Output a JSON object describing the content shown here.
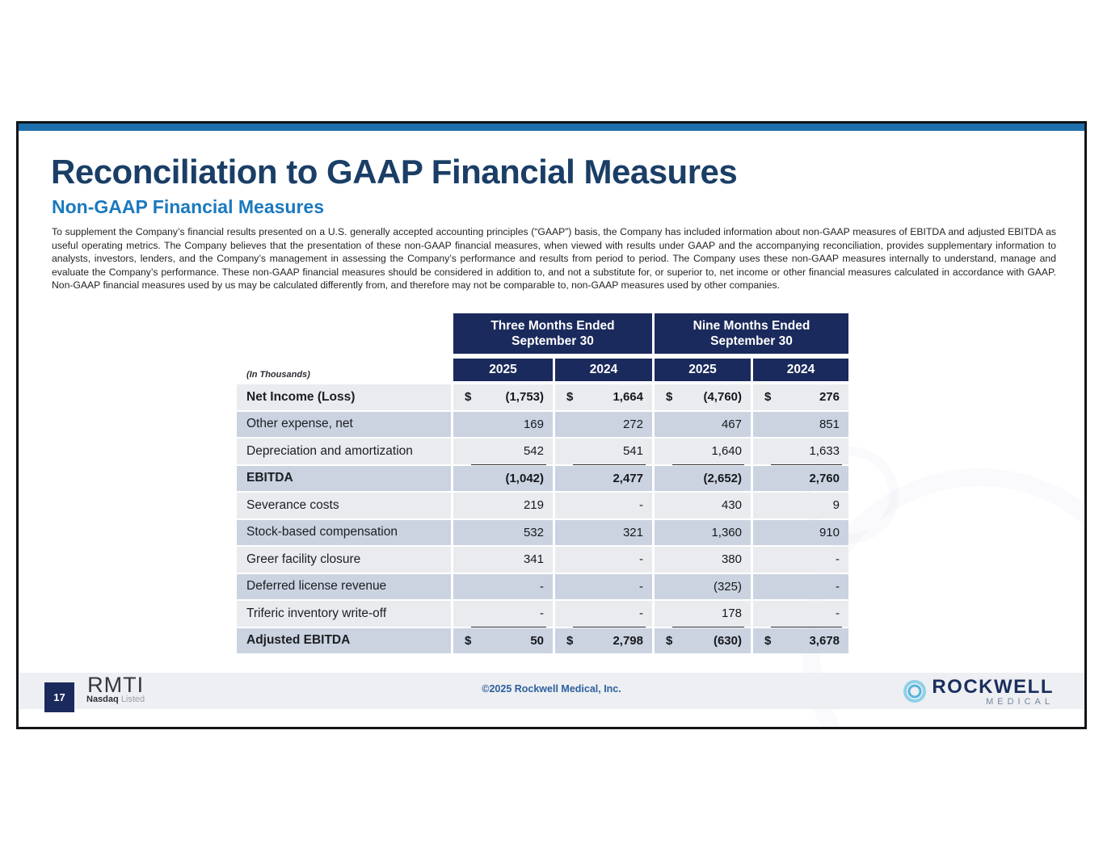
{
  "slide": {
    "title": "Reconciliation to GAAP Financial Measures",
    "subtitle": "Non-GAAP Financial Measures",
    "body_paragraph": "To supplement the Company’s financial results presented on a U.S. generally accepted accounting principles (“GAAP”) basis, the Company has included information about non-GAAP measures of EBITDA and adjusted EBITDA as useful operating metrics. The Company believes that the presentation of these non-GAAP financial measures, when viewed with results under GAAP and the accompanying reconciliation, provides supplementary information to analysts, investors, lenders, and the Company’s management in assessing the Company’s performance and results from period to period. The Company uses these non-GAAP measures internally to understand, manage and evaluate the Company’s performance. These non-GAAP financial measures should be considered in addition to, and not a substitute for, or superior to, net income or other financial measures calculated in accordance with GAAP. Non-GAAP financial measures used by us may be calculated differently from, and therefore may not be comparable to, non-GAAP measures used by other companies."
  },
  "table": {
    "units_label": "(In Thousands)",
    "currency_symbol": "$",
    "col_groups": [
      {
        "label": "Three Months Ended\nSeptember 30"
      },
      {
        "label": "Nine Months Ended\nSeptember 30"
      }
    ],
    "year_columns": [
      "2025",
      "2024",
      "2025",
      "2024"
    ],
    "rows": [
      {
        "label": "Net Income (Loss)",
        "bold": true,
        "dollar": true,
        "underline": false,
        "values": [
          "(1,753)",
          "1,664",
          "(4,760)",
          "276"
        ]
      },
      {
        "label": "Other expense, net",
        "bold": false,
        "dollar": false,
        "underline": false,
        "values": [
          "169",
          "272",
          "467",
          "851"
        ]
      },
      {
        "label": "Depreciation and amortization",
        "bold": false,
        "dollar": false,
        "underline": true,
        "values": [
          "542",
          "541",
          "1,640",
          "1,633"
        ]
      },
      {
        "label": "EBITDA",
        "bold": true,
        "dollar": false,
        "underline": false,
        "values": [
          "(1,042)",
          "2,477",
          "(2,652)",
          "2,760"
        ]
      },
      {
        "label": "Severance costs",
        "bold": false,
        "dollar": false,
        "underline": false,
        "values": [
          "219",
          "-",
          "430",
          "9"
        ]
      },
      {
        "label": "Stock-based compensation",
        "bold": false,
        "dollar": false,
        "underline": false,
        "values": [
          "532",
          "321",
          "1,360",
          "910"
        ]
      },
      {
        "label": "Greer facility closure",
        "bold": false,
        "dollar": false,
        "underline": false,
        "values": [
          "341",
          "-",
          "380",
          "-"
        ]
      },
      {
        "label": "Deferred license revenue",
        "bold": false,
        "dollar": false,
        "underline": false,
        "values": [
          "-",
          "-",
          "(325)",
          "-"
        ]
      },
      {
        "label": "Triferic inventory write-off",
        "bold": false,
        "dollar": false,
        "underline": true,
        "values": [
          "-",
          "-",
          "178",
          "-"
        ]
      },
      {
        "label": "Adjusted EBITDA",
        "bold": true,
        "dollar": true,
        "underline": false,
        "values": [
          "50",
          "2,798",
          "(630)",
          "3,678"
        ]
      }
    ]
  },
  "footer": {
    "page_number": "17",
    "ticker": "RMTI",
    "nasdaq_bold": "Nasdaq",
    "nasdaq_light": "Listed",
    "copyright": "©2025 Rockwell Medical, Inc.",
    "logo_primary": "ROCKWELL",
    "logo_secondary": "MEDICAL"
  },
  "colors": {
    "top_bar": "#1e70ad",
    "title_navy": "#1a3e66",
    "subtitle_blue": "#1b79be",
    "table_header_navy": "#1b2a5c",
    "row_light": "#e9ebee",
    "row_blue": "#cbd3e1",
    "footer_bar": "#edeff2",
    "copyright_blue": "#2d5f9f",
    "logo_navy": "#1b2f5e",
    "logo_ring_blue": "#8fd0e8"
  }
}
